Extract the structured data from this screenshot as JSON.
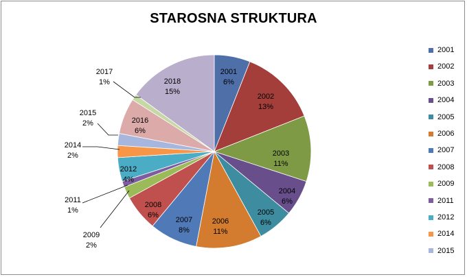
{
  "chart_data": {
    "type": "pie",
    "title": "STAROSNA STRUKTURA",
    "legend_position": "right",
    "slices": [
      {
        "label": "2001",
        "value": 6,
        "percent_label": "6%",
        "color": "#4F6FA8"
      },
      {
        "label": "2002",
        "value": 13,
        "percent_label": "13%",
        "color": "#A43E3B"
      },
      {
        "label": "2003",
        "value": 11,
        "percent_label": "11%",
        "color": "#7E9A45"
      },
      {
        "label": "2004",
        "value": 6,
        "percent_label": "6%",
        "color": "#684F8C"
      },
      {
        "label": "2005",
        "value": 6,
        "percent_label": "6%",
        "color": "#3E8CA0"
      },
      {
        "label": "2006",
        "value": 11,
        "percent_label": "11%",
        "color": "#D37B2F"
      },
      {
        "label": "2007",
        "value": 8,
        "percent_label": "8%",
        "color": "#5079B8"
      },
      {
        "label": "2008",
        "value": 6,
        "percent_label": "6%",
        "color": "#C0504D"
      },
      {
        "label": "2009",
        "value": 2,
        "percent_label": "2%",
        "color": "#9BBB59"
      },
      {
        "label": "2011",
        "value": 1,
        "percent_label": "1%",
        "color": "#7D5DA0"
      },
      {
        "label": "2012",
        "value": 4,
        "percent_label": "4%",
        "color": "#4BACC6"
      },
      {
        "label": "2014",
        "value": 2,
        "percent_label": "2%",
        "color": "#F79646"
      },
      {
        "label": "2015",
        "value": 2,
        "percent_label": "2%",
        "color": "#A6B6DC"
      },
      {
        "label": "2016",
        "value": 6,
        "percent_label": "6%",
        "color": "#DCABA9"
      },
      {
        "label": "2017",
        "value": 1,
        "percent_label": "1%",
        "color": "#C6D8A5"
      },
      {
        "label": "2018",
        "value": 15,
        "percent_label": "15%",
        "color": "#B9AECB"
      }
    ],
    "legend": [
      "2001",
      "2002",
      "2003",
      "2004",
      "2005",
      "2006",
      "2007",
      "2008",
      "2009",
      "2011",
      "2012",
      "2014",
      "2015"
    ]
  }
}
